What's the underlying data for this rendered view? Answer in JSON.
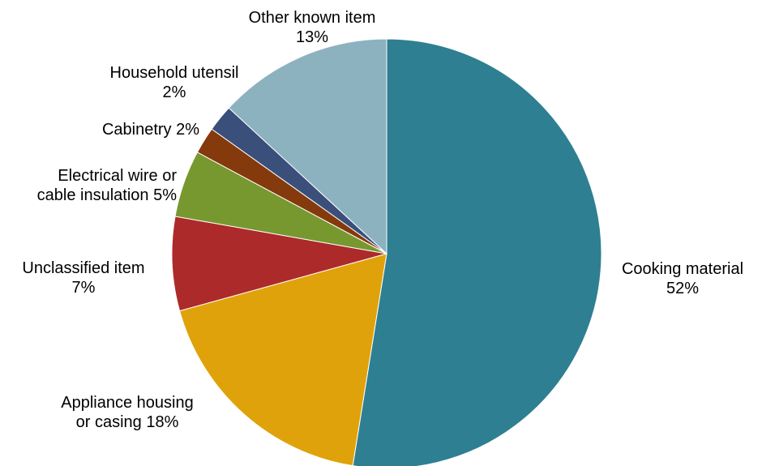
{
  "chart_data": {
    "type": "pie",
    "start_angle_deg": 0,
    "direction": "clockwise",
    "slices": [
      {
        "key": "cooking",
        "lines": [
          "Cooking material",
          "52%"
        ],
        "value": 52,
        "color": "#2e7f91"
      },
      {
        "key": "appliance",
        "lines": [
          "Appliance housing",
          "or casing 18%"
        ],
        "value": 18,
        "color": "#e0a20a"
      },
      {
        "key": "unclassified",
        "lines": [
          "Unclassified item",
          "7%"
        ],
        "value": 7,
        "color": "#ad2a2a"
      },
      {
        "key": "electrical",
        "lines": [
          "Electrical wire or",
          "cable insulation 5%"
        ],
        "value": 5,
        "color": "#77982e"
      },
      {
        "key": "cabinetry",
        "lines": [
          "Cabinetry 2%"
        ],
        "value": 2,
        "color": "#843a0c"
      },
      {
        "key": "utensil",
        "lines": [
          "Household utensil",
          "2%"
        ],
        "value": 2,
        "color": "#3b4f7b"
      },
      {
        "key": "other",
        "lines": [
          "Other known item",
          "13%"
        ],
        "value": 13,
        "color": "#8cb2c0"
      }
    ]
  }
}
